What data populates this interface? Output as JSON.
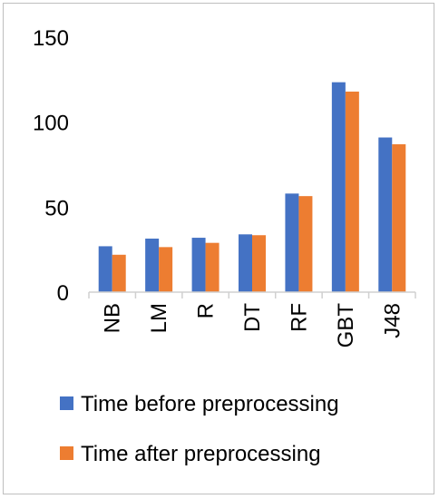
{
  "chart_data": {
    "type": "bar",
    "categories": [
      "NB",
      "LM",
      "R",
      "DT",
      "RF",
      "GBT",
      "J48"
    ],
    "series": [
      {
        "name": "Time before preprocessing",
        "color": "#4472C4",
        "values": [
          27,
          31.5,
          32,
          34,
          58,
          123.5,
          91
        ]
      },
      {
        "name": "Time after preprocessing",
        "color": "#ED7D31",
        "values": [
          22,
          26.5,
          29,
          33.5,
          56.5,
          118,
          87
        ]
      }
    ],
    "yticks": [
      0,
      50,
      100,
      150
    ],
    "ylim": [
      0,
      150
    ],
    "grid": false,
    "legend": "bottom"
  }
}
